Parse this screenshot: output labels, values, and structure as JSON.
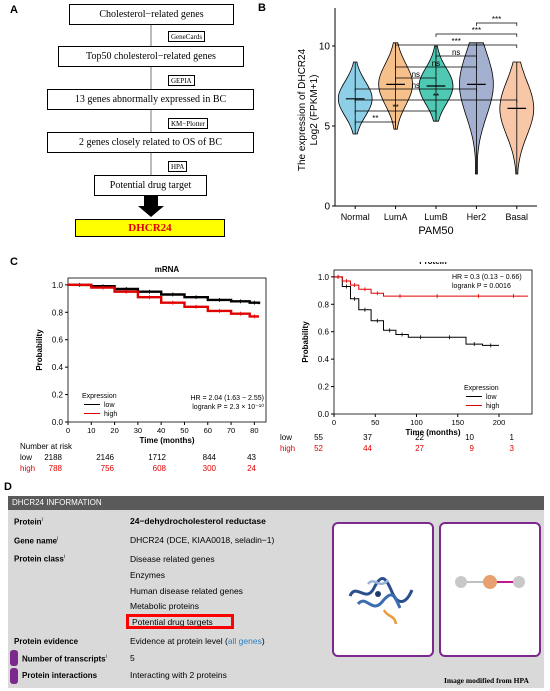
{
  "panel_labels": {
    "a": "A",
    "b": "B",
    "c": "C",
    "d": "D"
  },
  "flowchart": {
    "boxes": [
      "Cholesterol−related genes",
      "Top50 cholesterol−related genes",
      "13 genes abnormally expressed in BC",
      "2 genes closely related to OS of BC",
      "Potential drug target"
    ],
    "tags": [
      "GeneCards",
      "GEPIA",
      "KM−Plotter",
      "HPA"
    ],
    "target": "DHCR24"
  },
  "chart_data": [
    {
      "type": "violin",
      "panel": "B",
      "ylabel": "The expression of DHCR24",
      "ylabel2": "Log2 (FPKM+1)",
      "xlabel": "PAM50",
      "categories": [
        "Normal",
        "LumA",
        "LumB",
        "Her2",
        "Basal"
      ],
      "colors": [
        "#8ecfe8",
        "#f6c08a",
        "#4fc9b4",
        "#a3b0d0",
        "#f7c7a8"
      ],
      "medians": [
        6.7,
        7.6,
        7.5,
        7.6,
        6.1
      ],
      "ranges": [
        [
          4.5,
          9.0
        ],
        [
          4.8,
          10.2
        ],
        [
          5.3,
          10.0
        ],
        [
          2.0,
          10.2
        ],
        [
          2.0,
          9.0
        ]
      ],
      "ylim": [
        0,
        12
      ],
      "yticks": [
        0,
        5,
        10
      ],
      "significance": [
        {
          "pair": [
            "Normal",
            "LumA"
          ],
          "label": "**"
        },
        {
          "pair": [
            "Normal",
            "LumB"
          ],
          "label": "**"
        },
        {
          "pair": [
            "Normal",
            "Her2"
          ],
          "label": "ns"
        },
        {
          "pair": [
            "Normal",
            "Basal"
          ],
          "label": "**"
        },
        {
          "pair": [
            "LumA",
            "LumB"
          ],
          "label": "ns"
        },
        {
          "pair": [
            "LumA",
            "Her2"
          ],
          "label": "ns"
        },
        {
          "pair": [
            "LumA",
            "Basal"
          ],
          "label": "***"
        },
        {
          "pair": [
            "LumB",
            "Her2"
          ],
          "label": "ns"
        },
        {
          "pair": [
            "LumB",
            "Basal"
          ],
          "label": "***"
        },
        {
          "pair": [
            "Her2",
            "Basal"
          ],
          "label": "***"
        }
      ]
    },
    {
      "type": "line",
      "panel": "C-mRNA",
      "title": "mRNA",
      "xlabel": "Time (months)",
      "ylabel": "Probability",
      "xlim": [
        0,
        85
      ],
      "ylim": [
        0,
        1.05
      ],
      "xticks": [
        0,
        10,
        20,
        30,
        40,
        50,
        60,
        70,
        80
      ],
      "yticks": [
        0.0,
        0.2,
        0.4,
        0.6,
        0.8,
        1.0
      ],
      "series": [
        {
          "name": "low",
          "color": "#000000",
          "x": [
            0,
            10,
            20,
            30,
            40,
            50,
            60,
            70,
            78,
            82
          ],
          "y": [
            1.0,
            0.99,
            0.97,
            0.95,
            0.93,
            0.91,
            0.89,
            0.88,
            0.87,
            0.86
          ]
        },
        {
          "name": "high",
          "color": "#e00000",
          "x": [
            0,
            10,
            20,
            30,
            40,
            50,
            60,
            70,
            78,
            82
          ],
          "y": [
            1.0,
            0.98,
            0.95,
            0.91,
            0.87,
            0.84,
            0.81,
            0.79,
            0.77,
            0.77
          ]
        }
      ],
      "legend_title": "Expression",
      "stats": [
        "HR = 2.04 (1.63 − 2.55)",
        "logrank P = 2.3 × 10⁻¹⁰"
      ],
      "risk": {
        "title": "Number at risk",
        "rows": [
          {
            "label": "low",
            "values": [
              "2188",
              "2146",
              "1712",
              "844",
              "43"
            ]
          },
          {
            "label": "high",
            "values": [
              "788",
              "756",
              "608",
              "300",
              "24"
            ]
          }
        ]
      }
    },
    {
      "type": "line",
      "panel": "C-Protein",
      "title": "Protein",
      "xlabel": "Time (months)",
      "ylabel": "Probability",
      "xlim": [
        0,
        240
      ],
      "ylim": [
        0,
        1.05
      ],
      "xticks": [
        0,
        50,
        100,
        150,
        200
      ],
      "yticks": [
        0.0,
        0.2,
        0.4,
        0.6,
        0.8,
        1.0
      ],
      "series": [
        {
          "name": "low",
          "color": "#000000",
          "x": [
            0,
            10,
            20,
            30,
            45,
            60,
            75,
            90,
            120,
            160,
            180,
            200
          ],
          "y": [
            1.0,
            0.93,
            0.84,
            0.76,
            0.68,
            0.61,
            0.58,
            0.56,
            0.56,
            0.51,
            0.5,
            0.5
          ]
        },
        {
          "name": "high",
          "color": "#e00000",
          "x": [
            0,
            10,
            20,
            30,
            45,
            60,
            100,
            150,
            200,
            235
          ],
          "y": [
            1.0,
            0.97,
            0.94,
            0.91,
            0.88,
            0.86,
            0.86,
            0.86,
            0.86,
            0.86
          ]
        }
      ],
      "legend_title": "Expression",
      "stats": [
        "HR = 0.3 (0.13 − 0.66)",
        "logrank P = 0.0016"
      ],
      "risk": {
        "title": "",
        "rows": [
          {
            "label": "low",
            "values": [
              "55",
              "37",
              "22",
              "10",
              "1"
            ]
          },
          {
            "label": "high",
            "values": [
              "52",
              "44",
              "27",
              "9",
              "3"
            ]
          }
        ]
      }
    }
  ],
  "hpa": {
    "header": "DHCR24 INFORMATION",
    "rows": {
      "protein_label": "Protein",
      "protein_value": "24−dehydrocholesterol reductase",
      "gene_label": "Gene name",
      "gene_value": "DHCR24 (DCE, KIAA0018, seladin−1)",
      "class_label": "Protein class",
      "class_values": [
        "Disease related genes",
        "Enzymes",
        "Human disease related genes",
        "Metabolic proteins",
        "Potential drug targets"
      ],
      "evidence_label": "Protein evidence",
      "evidence_value": "Evidence at protein level (",
      "evidence_link": "all genes",
      "evidence_close": ")",
      "transcripts_label": "Number of transcripts",
      "transcripts_value": "5",
      "interactions_label": "Protein interactions",
      "interactions_value": "Interacting with 2 proteins"
    },
    "credit": "Image modified from HPA",
    "accent": "#7b2a8c",
    "highlight": "#ff0000"
  }
}
